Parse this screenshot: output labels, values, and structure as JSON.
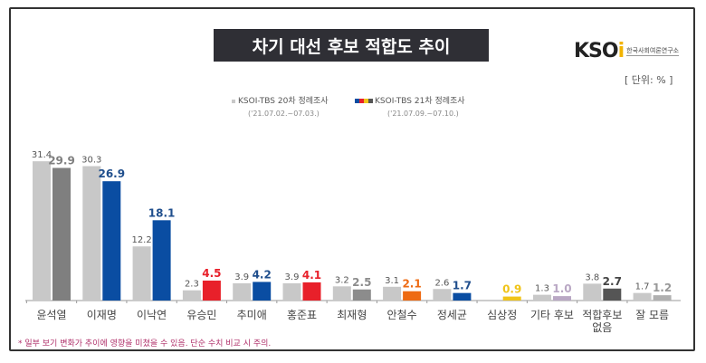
{
  "title": "차기 대선 후보 적합도 추이",
  "logo": {
    "text": "KSOI",
    "subtitle": "한국사회여론연구소"
  },
  "unit": "[ 단위: % ]",
  "note": "* 일부 보기 변화가 추이에 영향을 미쳤을 수 있음. 단순 수치 비교 시 주의.",
  "chart_data": {
    "type": "bar",
    "title": "차기 대선 후보 적합도 추이",
    "categories": [
      "윤석열",
      "이재명",
      "이낙연",
      "유승민",
      "추미애",
      "홍준표",
      "최재형",
      "안철수",
      "정세균",
      "심상정",
      "기타 후보",
      "적합후보 없음",
      "잘 모름"
    ],
    "series": [
      {
        "name": "KSOI-TBS 20차 정례조사",
        "period": "('21.07.02.~07.03.)",
        "values": [
          31.4,
          30.3,
          12.2,
          2.3,
          3.9,
          3.9,
          3.2,
          3.1,
          2.6,
          null,
          1.3,
          3.8,
          1.7
        ],
        "color": "#c8c8c8"
      },
      {
        "name": "KSOI-TBS 21차 정례조사",
        "period": "('21.07.09.~07.10.)",
        "values": [
          29.9,
          26.9,
          18.1,
          4.5,
          4.2,
          4.1,
          2.5,
          2.1,
          1.7,
          0.9,
          1.0,
          2.7,
          1.2
        ],
        "colors": [
          "#7f7f7f",
          "#0a4da2",
          "#0a4da2",
          "#e8202a",
          "#0a4da2",
          "#e8202a",
          "#8c8c8c",
          "#ee6a12",
          "#0a4da2",
          "#f0c419",
          "#b9a7c4",
          "#555555",
          "#b0b0b0"
        ],
        "label_colors": [
          "#7f7f7f",
          "#1f4e8c",
          "#1f4e8c",
          "#e8202a",
          "#1f4e8c",
          "#e8202a",
          "#8c8c8c",
          "#ee6a12",
          "#1f4e8c",
          "#f0c419",
          "#b9a7c4",
          "#444444",
          "#999999"
        ]
      }
    ],
    "ylim": [
      0,
      35
    ],
    "legend": "top-center",
    "grid": false
  }
}
